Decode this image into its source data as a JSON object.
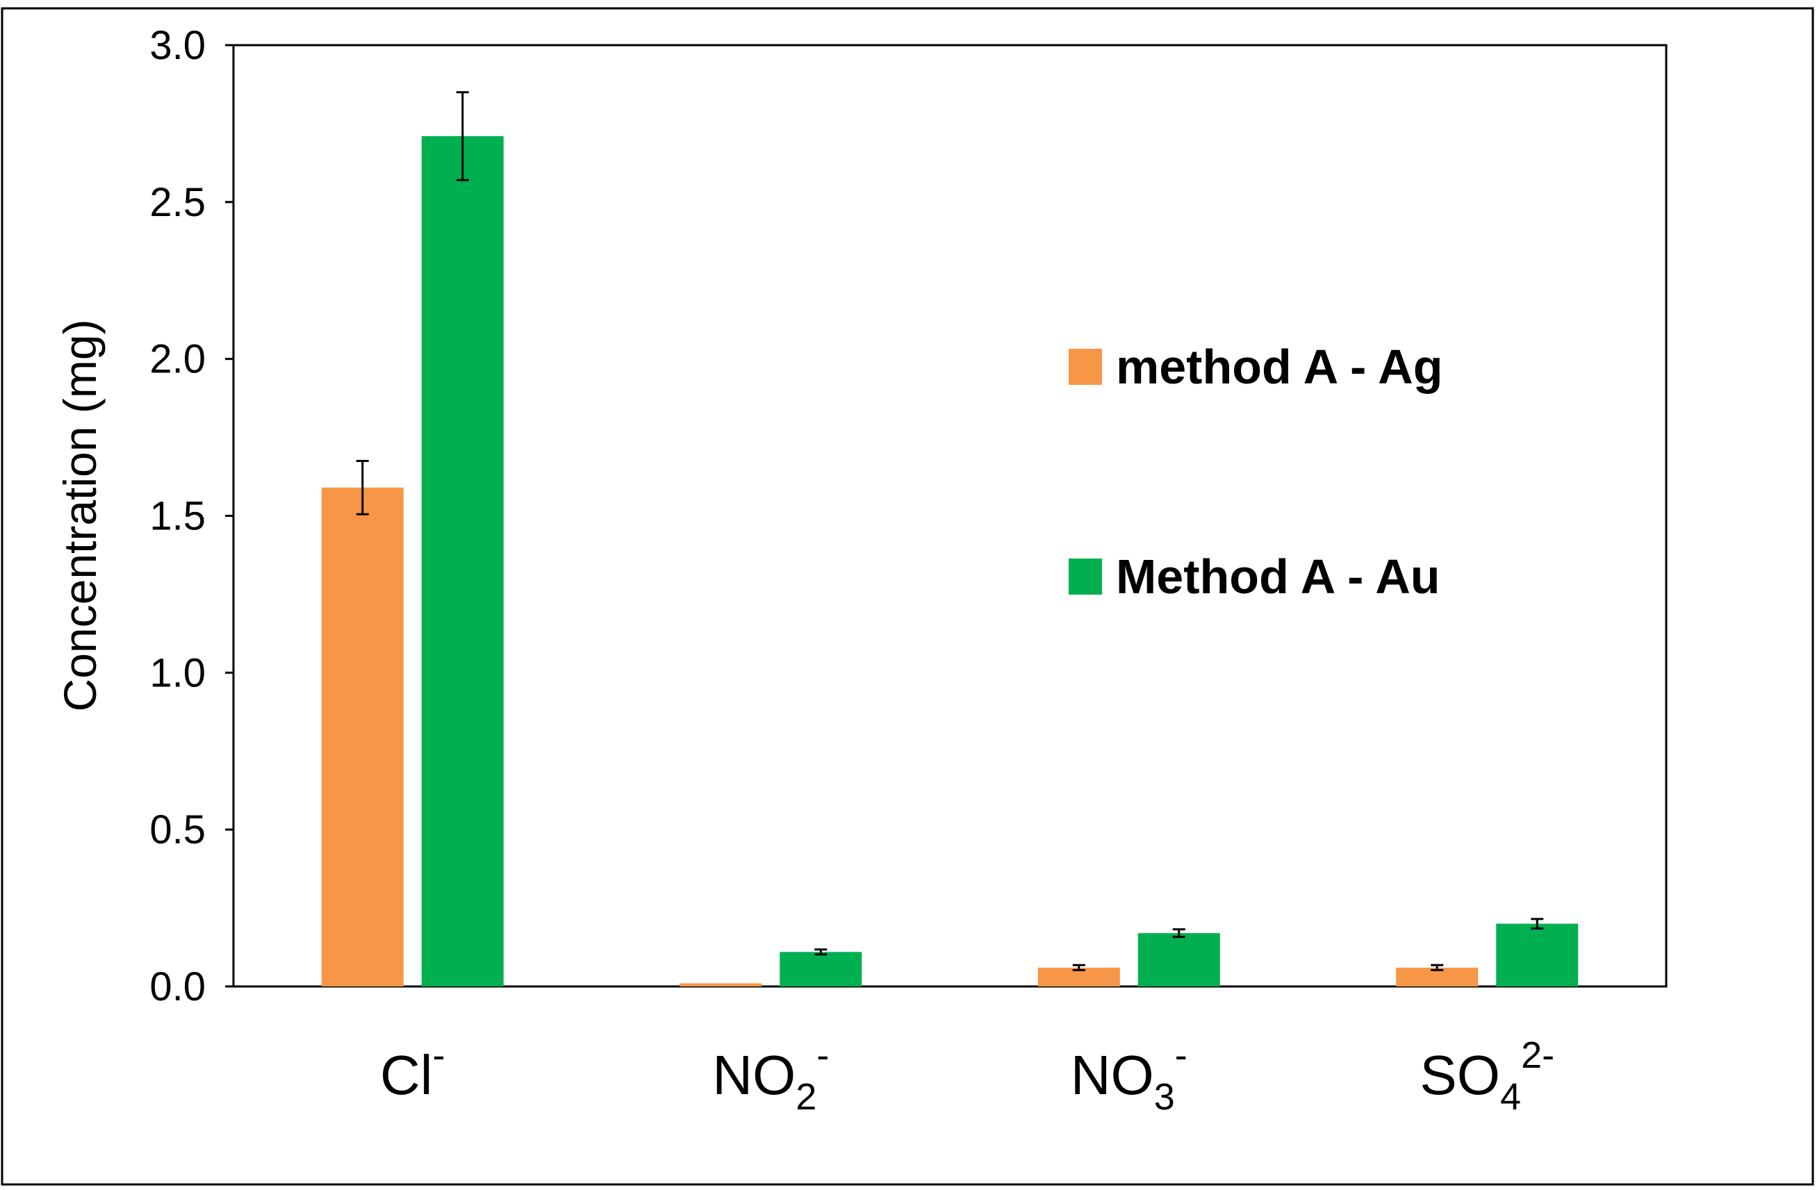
{
  "chart_data": {
    "type": "bar",
    "title": "",
    "xlabel": "",
    "ylabel": "Concentration (mg)",
    "ylim": [
      0,
      3.0
    ],
    "yticks": [
      "0.0",
      "0.5",
      "1.0",
      "1.5",
      "2.0",
      "2.5",
      "3.0"
    ],
    "categories": [
      {
        "base": "Cl",
        "sub": "",
        "sup": "-"
      },
      {
        "base": "NO",
        "sub": "2",
        "sup": "-"
      },
      {
        "base": "NO",
        "sub": "3",
        "sup": "-"
      },
      {
        "base": "SO",
        "sub": "4",
        "sup": "2-"
      }
    ],
    "series": [
      {
        "name": "method A - Ag",
        "color": "#F79646",
        "values": [
          1.59,
          0.01,
          0.06,
          0.06
        ],
        "errors": [
          0.085,
          0.0,
          0.008,
          0.008
        ]
      },
      {
        "name": "Method A - Au",
        "color": "#00B050",
        "values": [
          2.71,
          0.11,
          0.17,
          0.2
        ],
        "errors": [
          0.14,
          0.008,
          0.012,
          0.015
        ]
      }
    ],
    "grid": false,
    "legend_position": "right"
  }
}
